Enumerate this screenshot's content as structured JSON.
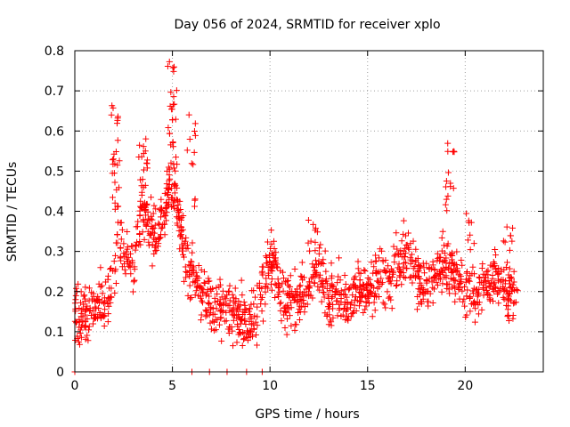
{
  "chart_data": {
    "type": "scatter",
    "title": "Day 056 of 2024, SRMTID for receiver xplo",
    "xlabel": "GPS time / hours",
    "ylabel": "SRMTID / TECUs",
    "xlim": [
      0,
      24
    ],
    "ylim": [
      0,
      0.8
    ],
    "xticks": [
      0,
      5,
      10,
      15,
      20
    ],
    "xtick_labels": [
      "0",
      "5",
      "10",
      "15",
      "20"
    ],
    "yticks": [
      0,
      0.1,
      0.2,
      0.3,
      0.4,
      0.5,
      0.6,
      0.7,
      0.8
    ],
    "ytick_labels": [
      "0",
      "0.1",
      "0.2",
      "0.3",
      "0.4",
      "0.5",
      "0.6",
      "0.7",
      "0.8"
    ],
    "grid": true,
    "marker": "+",
    "color": "#ff0000",
    "trend": [
      [
        0.0,
        0.15
      ],
      [
        0.5,
        0.14
      ],
      [
        1.0,
        0.16
      ],
      [
        1.5,
        0.17
      ],
      [
        2.0,
        0.22
      ],
      [
        2.2,
        0.35
      ],
      [
        2.5,
        0.3
      ],
      [
        3.0,
        0.25
      ],
      [
        3.3,
        0.38
      ],
      [
        3.7,
        0.4
      ],
      [
        4.0,
        0.32
      ],
      [
        4.5,
        0.4
      ],
      [
        5.0,
        0.45
      ],
      [
        5.3,
        0.4
      ],
      [
        5.6,
        0.3
      ],
      [
        6.0,
        0.24
      ],
      [
        6.5,
        0.19
      ],
      [
        7.0,
        0.17
      ],
      [
        7.5,
        0.16
      ],
      [
        8.0,
        0.15
      ],
      [
        8.5,
        0.15
      ],
      [
        9.0,
        0.12
      ],
      [
        9.5,
        0.18
      ],
      [
        10.0,
        0.28
      ],
      [
        10.3,
        0.26
      ],
      [
        10.7,
        0.17
      ],
      [
        11.5,
        0.18
      ],
      [
        12.0,
        0.23
      ],
      [
        12.4,
        0.27
      ],
      [
        13.0,
        0.18
      ],
      [
        13.5,
        0.2
      ],
      [
        14.0,
        0.17
      ],
      [
        14.5,
        0.2
      ],
      [
        15.0,
        0.2
      ],
      [
        15.5,
        0.24
      ],
      [
        16.0,
        0.22
      ],
      [
        16.5,
        0.27
      ],
      [
        17.0,
        0.29
      ],
      [
        17.5,
        0.24
      ],
      [
        18.0,
        0.21
      ],
      [
        18.5,
        0.23
      ],
      [
        19.0,
        0.27
      ],
      [
        19.5,
        0.24
      ],
      [
        20.0,
        0.21
      ],
      [
        20.5,
        0.19
      ],
      [
        21.0,
        0.22
      ],
      [
        21.5,
        0.24
      ],
      [
        22.0,
        0.21
      ],
      [
        22.5,
        0.19
      ],
      [
        22.7,
        0.17
      ]
    ],
    "spread": 0.065,
    "point_count": 1400,
    "peaks": [
      {
        "x": 2.1,
        "ymin": 0.4,
        "ymax": 0.67,
        "n": 25
      },
      {
        "x": 3.5,
        "ymin": 0.4,
        "ymax": 0.59,
        "n": 25
      },
      {
        "x": 5.0,
        "ymin": 0.45,
        "ymax": 0.79,
        "n": 35
      },
      {
        "x": 6.0,
        "ymin": 0.4,
        "ymax": 0.65,
        "n": 12
      },
      {
        "x": 12.2,
        "ymin": 0.3,
        "ymax": 0.4,
        "n": 10
      },
      {
        "x": 19.2,
        "ymin": 0.4,
        "ymax": 0.57,
        "n": 15
      },
      {
        "x": 20.3,
        "ymin": 0.3,
        "ymax": 0.4,
        "n": 8
      },
      {
        "x": 22.2,
        "ymin": 0.3,
        "ymax": 0.4,
        "n": 8
      }
    ],
    "zero_points": [
      0.0,
      6.0,
      6.9,
      7.8,
      8.8,
      9.6
    ]
  }
}
